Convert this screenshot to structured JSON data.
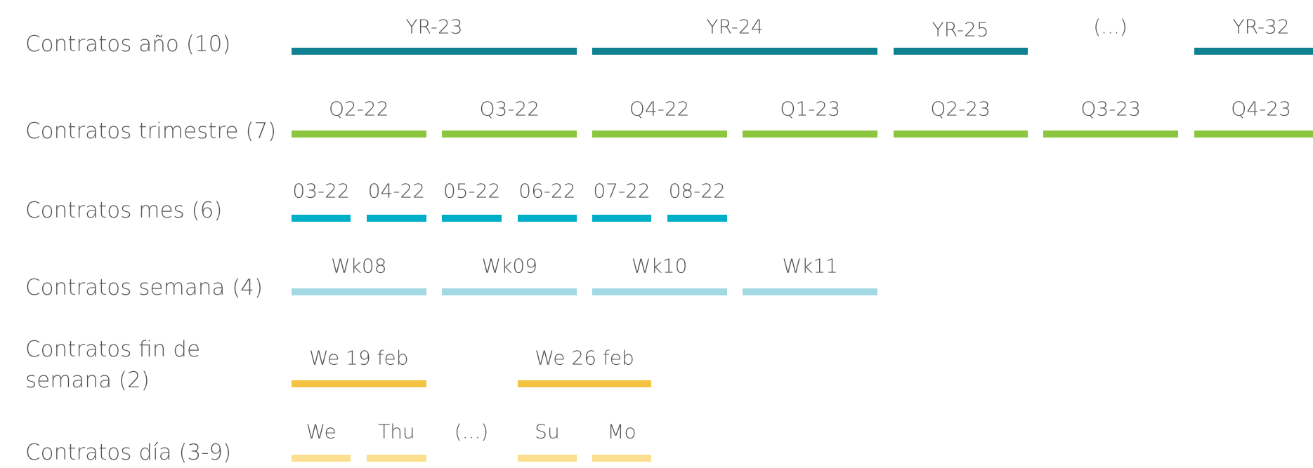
{
  "rows": [
    {
      "label": "Contratos año (10)",
      "items": [
        "YR-23",
        "YR-24",
        "YR-25",
        "(...)",
        "YR-32"
      ]
    },
    {
      "label": "Contratos trimestre (7)",
      "items": [
        "Q2-22",
        "Q3-22",
        "Q4-22",
        "Q1-23",
        "Q2-23",
        "Q3-23",
        "Q4-23"
      ]
    },
    {
      "label": "Contratos mes (6)",
      "items": [
        "03-22",
        "04-22",
        "05-22",
        "06-22",
        "07-22",
        "08-22"
      ]
    },
    {
      "label": "Contratos semana (4)",
      "items": [
        "Wk08",
        "Wk09",
        "Wk10",
        "Wk11"
      ]
    },
    {
      "label": "Contratos fin de semana (2)",
      "items": [
        "We 19 feb",
        "We 26 feb"
      ]
    },
    {
      "label": "Contratos día (3-9)",
      "items": [
        "We",
        "Thu",
        "(...)",
        "Su",
        "Mo"
      ]
    }
  ]
}
